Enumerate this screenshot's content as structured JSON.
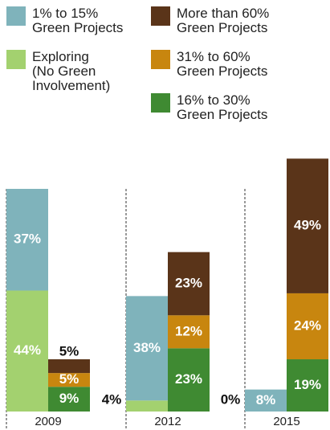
{
  "chart_data": {
    "type": "stacked-grouped-bar",
    "categories": [
      "2009",
      "2012",
      "2015"
    ],
    "series": [
      {
        "name": "Exploring\n(No Green\nInvolvement)",
        "color": "#a3d16f",
        "stack": 0,
        "values": [
          44,
          4,
          0
        ],
        "value_labels": [
          "44%",
          "4%",
          "0%"
        ]
      },
      {
        "name": "1% to 15%\nGreen Projects",
        "color": "#7fb3bb",
        "stack": 0,
        "values": [
          37,
          38,
          8
        ],
        "value_labels": [
          "37%",
          "38%",
          "8%"
        ]
      },
      {
        "name": "16% to 30%\nGreen Projects",
        "color": "#3f8a32",
        "stack": 1,
        "values": [
          9,
          23,
          19
        ],
        "value_labels": [
          "9%",
          "23%",
          "19%"
        ]
      },
      {
        "name": "31% to 60%\nGreen Projects",
        "color": "#c8860f",
        "stack": 1,
        "values": [
          5,
          12,
          24
        ],
        "value_labels": [
          "5%",
          "12%",
          "24%"
        ]
      },
      {
        "name": "More than 60%\nGreen Projects",
        "color": "#5a3419",
        "stack": 1,
        "values": [
          5,
          23,
          49
        ],
        "value_labels": [
          "5%",
          "23%",
          "49%"
        ]
      }
    ]
  }
}
